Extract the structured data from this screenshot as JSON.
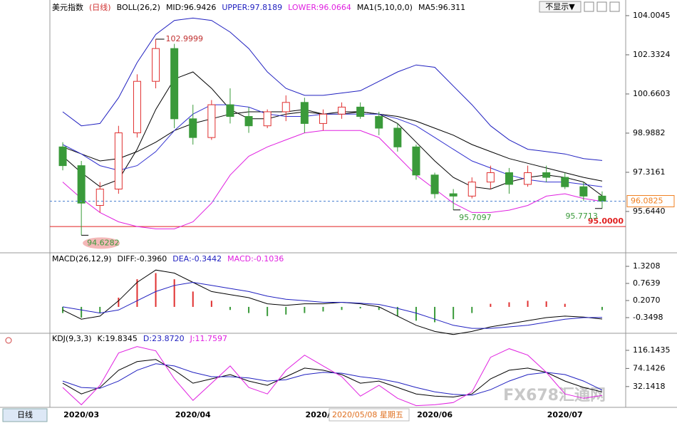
{
  "chart_data": [
    {
      "type": "candlestick",
      "title": "美元指数",
      "subtitle": "(日线)",
      "title_color": "#000000",
      "subtitle_color": "#d03030",
      "legend": [
        {
          "text": "BOLL(26,2)",
          "color": "#000000"
        },
        {
          "text": "MID:96.9426",
          "color": "#000000"
        },
        {
          "text": "UPPER:97.8189",
          "color": "#2020c0"
        },
        {
          "text": "LOWER:96.0664",
          "color": "#e020e0"
        },
        {
          "text": "MA1(5,10,0,0)",
          "color": "#000000"
        },
        {
          "text": "MA5:96.311",
          "color": "#000000"
        }
      ],
      "categories": [
        null,
        "2020/03",
        null,
        null,
        null,
        null,
        null,
        "2020/04",
        null,
        null,
        null,
        null,
        null,
        null,
        "2020/05",
        null,
        null,
        null,
        null,
        null,
        "2020/06",
        null,
        null,
        null,
        null,
        null,
        null,
        "2020/07",
        null,
        null
      ],
      "candles": {
        "open": [
          98.4,
          97.6,
          95.9,
          96.6,
          99.0,
          101.2,
          102.6,
          99.6,
          98.8,
          100.2,
          99.7,
          99.3,
          99.9,
          100.3,
          99.4,
          99.8,
          100.1,
          99.7,
          99.2,
          98.4,
          97.2,
          96.4,
          96.3,
          96.9,
          97.3,
          96.8,
          97.3,
          97.1,
          96.7,
          96.3
        ],
        "high": [
          98.6,
          97.8,
          96.9,
          99.3,
          101.5,
          102.9999,
          102.8,
          100.2,
          100.4,
          100.9,
          100.1,
          100.0,
          100.6,
          100.5,
          100.0,
          100.3,
          100.3,
          99.9,
          99.4,
          98.5,
          97.3,
          96.6,
          97.1,
          97.6,
          97.5,
          97.6,
          97.6,
          97.3,
          96.9,
          96.5
        ],
        "low": [
          97.4,
          94.6282,
          95.6,
          96.4,
          98.8,
          100.9,
          99.2,
          98.5,
          98.7,
          99.4,
          99.0,
          99.2,
          99.5,
          99.0,
          99.1,
          99.6,
          99.6,
          98.9,
          98.2,
          97.0,
          96.2,
          95.7097,
          96.2,
          96.6,
          96.4,
          96.7,
          96.9,
          96.6,
          96.1,
          95.7713
        ],
        "close": [
          97.6,
          96.0,
          96.6,
          99.0,
          101.2,
          102.6,
          99.6,
          98.8,
          100.2,
          99.7,
          99.3,
          99.9,
          100.3,
          99.4,
          99.8,
          100.1,
          99.7,
          99.2,
          98.4,
          97.2,
          96.4,
          96.3,
          96.9,
          97.3,
          96.8,
          97.3,
          97.1,
          96.7,
          96.3,
          96.0825
        ]
      },
      "up_color": "#e03030",
      "down_color": "#3a9a3a",
      "series": [
        {
          "color": "#2020c0",
          "values": [
            99.9,
            99.3,
            99.4,
            100.5,
            102.0,
            103.2,
            103.8,
            103.9,
            103.8,
            103.3,
            102.6,
            101.6,
            100.9,
            100.6,
            100.6,
            100.7,
            100.8,
            101.2,
            101.6,
            101.9,
            101.8,
            101.0,
            100.2,
            99.3,
            98.7,
            98.3,
            98.2,
            98.1,
            97.9,
            97.82
          ]
        },
        {
          "color": "#000000",
          "values": [
            98.4,
            98.1,
            97.8,
            97.9,
            98.2,
            98.6,
            99.1,
            99.4,
            99.6,
            99.8,
            99.9,
            99.9,
            99.9,
            100.0,
            99.8,
            99.9,
            99.9,
            99.8,
            99.7,
            99.5,
            99.2,
            98.9,
            98.5,
            98.2,
            97.9,
            97.7,
            97.5,
            97.3,
            97.1,
            96.94
          ]
        },
        {
          "color": "#e020e0",
          "values": [
            96.9,
            96.2,
            95.6,
            95.2,
            95.0,
            94.9,
            94.9,
            95.2,
            96.0,
            97.2,
            98.0,
            98.4,
            98.7,
            99.0,
            99.1,
            99.1,
            99.1,
            98.8,
            98.0,
            97.2,
            96.6,
            96.0,
            95.6,
            95.6,
            95.7,
            95.9,
            96.3,
            96.4,
            96.2,
            96.07
          ]
        },
        {
          "color": "#000000",
          "values": [
            98.0,
            97.3,
            96.7,
            97.0,
            98.3,
            100.0,
            101.3,
            101.6,
            100.9,
            100.0,
            99.6,
            99.6,
            99.8,
            99.9,
            99.8,
            99.8,
            99.9,
            99.8,
            99.4,
            98.6,
            97.8,
            97.1,
            96.7,
            96.6,
            96.9,
            97.1,
            97.2,
            97.1,
            96.9,
            96.311
          ]
        },
        {
          "color": "#3030d0",
          "values": [
            98.5,
            98.1,
            97.6,
            97.4,
            97.6,
            98.2,
            99.1,
            99.8,
            100.2,
            100.2,
            100.1,
            99.8,
            99.7,
            99.7,
            99.8,
            99.8,
            99.8,
            99.8,
            99.6,
            99.3,
            98.8,
            98.3,
            97.8,
            97.5,
            97.2,
            97.0,
            96.9,
            96.9,
            96.8,
            96.7
          ]
        }
      ],
      "ylim": [
        93.97,
        104.52
      ],
      "yticks": [
        104.0045,
        102.3324,
        100.6603,
        98.9882,
        97.3161,
        {
          "value": 95.644,
          "label": "95.6440"
        }
      ],
      "hlines": [
        {
          "value": 95,
          "label": "95.0000",
          "color": "#e02020"
        }
      ],
      "last_color": "#f08020"
    },
    {
      "type": "macd",
      "title": "MACD(26,12,9)",
      "title_color": "#000000",
      "legend": [
        {
          "text": "DIFF:-0.3960",
          "color": "#000000"
        },
        {
          "text": "DEA:-0.3442",
          "color": "#2020c0"
        },
        {
          "text": "MACD:-0.1036",
          "color": "#e020e0"
        }
      ],
      "values": [
        -0.2,
        -0.35,
        -0.2,
        0.3,
        0.9,
        1.1,
        0.9,
        0.5,
        0.2,
        -0.1,
        -0.2,
        -0.3,
        -0.25,
        -0.2,
        -0.15,
        -0.1,
        -0.05,
        -0.1,
        -0.3,
        -0.45,
        -0.5,
        -0.4,
        -0.2,
        0.1,
        0.15,
        0.2,
        0.18,
        0.1,
        0.0,
        -0.1036
      ],
      "up_color": "#e03030",
      "down_color": "#3a9a3a",
      "series": [
        {
          "color": "#000000",
          "values": [
            -0.1,
            -0.4,
            -0.3,
            0.2,
            0.8,
            1.2,
            1.1,
            0.8,
            0.5,
            0.4,
            0.3,
            0.1,
            0.05,
            0.1,
            0.1,
            0.15,
            0.1,
            0.0,
            -0.3,
            -0.6,
            -0.8,
            -0.9,
            -0.8,
            -0.65,
            -0.55,
            -0.45,
            -0.35,
            -0.3,
            -0.33,
            -0.396
          ]
        },
        {
          "color": "#2020c0",
          "values": [
            0.0,
            -0.1,
            -0.2,
            -0.1,
            0.2,
            0.5,
            0.7,
            0.8,
            0.7,
            0.6,
            0.5,
            0.35,
            0.25,
            0.2,
            0.15,
            0.15,
            0.12,
            0.08,
            -0.05,
            -0.2,
            -0.4,
            -0.6,
            -0.7,
            -0.7,
            -0.65,
            -0.6,
            -0.5,
            -0.4,
            -0.35,
            -0.3442
          ]
        }
      ],
      "ylim": [
        -0.79,
        1.692
      ],
      "yticks": [
        1.3208,
        0.7639,
        {
          "value": 0.207,
          "label": "0.2070"
        },
        -0.3498
      ]
    },
    {
      "type": "line",
      "title": "KDJ(9,3,3)",
      "title_color": "#000000",
      "legend": [
        {
          "text": "K:19.8345",
          "color": "#000000"
        },
        {
          "text": "D:23.8720",
          "color": "#2020c0"
        },
        {
          "text": "J:11.7597",
          "color": "#e020e0"
        }
      ],
      "series": [
        {
          "color": "#000000",
          "values": [
            40,
            15,
            30,
            70,
            90,
            95,
            70,
            40,
            50,
            60,
            45,
            35,
            55,
            75,
            70,
            60,
            40,
            45,
            30,
            15,
            10,
            8,
            15,
            50,
            70,
            75,
            65,
            45,
            30,
            19.8345
          ]
        },
        {
          "color": "#2020c0",
          "values": [
            45,
            30,
            28,
            45,
            70,
            85,
            80,
            65,
            55,
            55,
            52,
            45,
            48,
            60,
            65,
            63,
            55,
            50,
            42,
            30,
            20,
            14,
            12,
            25,
            45,
            60,
            65,
            60,
            45,
            23.872
          ]
        },
        {
          "color": "#e020e0",
          "values": [
            30,
            -10,
            35,
            110,
            125,
            115,
            50,
            0,
            40,
            80,
            30,
            15,
            70,
            105,
            80,
            55,
            10,
            35,
            5,
            -12,
            -10,
            -5,
            20,
            100,
            120,
            105,
            65,
            15,
            5,
            11.7597
          ]
        }
      ],
      "ylim": [
        -16,
        152.4
      ],
      "yticks": [
        116.1435,
        74.1426,
        32.1418
      ]
    }
  ],
  "tooltip": "2020/05/08 星期五",
  "period_button": "日线",
  "toggle": "不显示▼",
  "watermark": "FX678汇通网"
}
